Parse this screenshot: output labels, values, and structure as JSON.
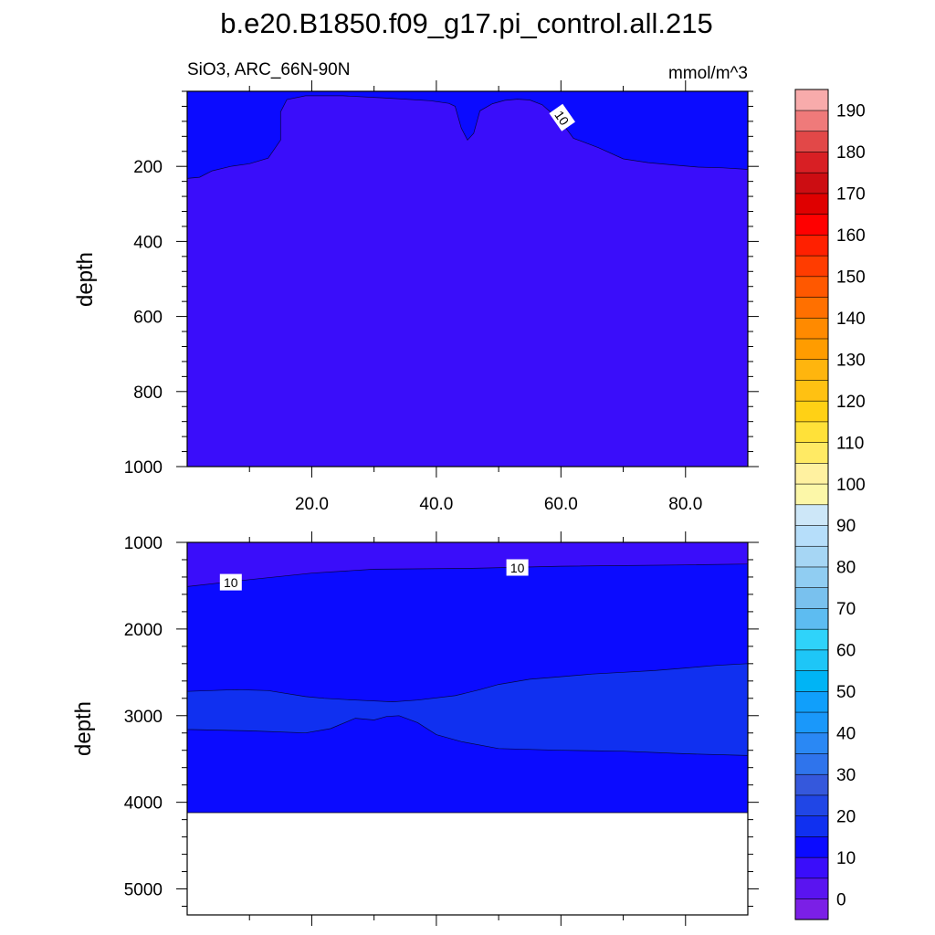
{
  "chart_data": {
    "type": "contour",
    "title": "b.e20.B1850.f09_g17.pi_control.all.215",
    "subtitle_left": "SiO3, ARC_66N-90N",
    "subtitle_right": "mmol/m^3",
    "xlim": [
      0,
      90
    ],
    "x_ticks": [
      20,
      40,
      60,
      80
    ],
    "x_tick_labels": [
      "20.0",
      "40.0",
      "60.0",
      "80.0"
    ],
    "colorbar": {
      "levels": [
        0,
        5,
        10,
        15,
        20,
        25,
        30,
        35,
        40,
        45,
        50,
        55,
        60,
        65,
        70,
        75,
        80,
        85,
        90,
        95,
        100,
        105,
        110,
        115,
        120,
        125,
        130,
        135,
        140,
        145,
        150,
        155,
        160,
        165,
        170,
        175,
        180,
        185,
        190
      ],
      "labels": [
        "0",
        "10",
        "20",
        "30",
        "40",
        "50",
        "60",
        "70",
        "80",
        "90",
        "100",
        "110",
        "120",
        "130",
        "140",
        "150",
        "160",
        "170",
        "180",
        "190"
      ],
      "colors": [
        "#7b1fe6",
        "#5a14f0",
        "#3a0dfa",
        "#0b0bff",
        "#1030f0",
        "#2046e6",
        "#3558dc",
        "#2f74ec",
        "#2a88f4",
        "#1a98fa",
        "#109ffb",
        "#00b4f5",
        "#1ec6f7",
        "#2fd3fa",
        "#5dbcf1",
        "#79c1ee",
        "#90cdf2",
        "#a6d6f4",
        "#b6defa",
        "#cde7f8",
        "#fcf7a8",
        "#fff1a0",
        "#ffea64",
        "#ffe139",
        "#ffd115",
        "#ffc112",
        "#ffb50e",
        "#ff9c00",
        "#ff8a00",
        "#ff7000",
        "#ff5800",
        "#ff3c00",
        "#ff2000",
        "#ff0000",
        "#df0000",
        "#cc0d12",
        "#d81f24",
        "#e24848",
        "#ef7a7a",
        "#f8abab"
      ]
    },
    "panels": [
      {
        "ylabel": "depth",
        "ylim": [
          0,
          1000
        ],
        "y_ticks": [
          200,
          400,
          600,
          800,
          1000
        ],
        "y_tick_labels": [
          "200",
          "400",
          "600",
          "800",
          "1000"
        ],
        "fill_color": "#3a0dfa",
        "regions": [
          {
            "color": "#0b0bff",
            "polygon": [
              [
                0,
                0
              ],
              [
                90,
                0
              ],
              [
                90,
                208
              ],
              [
                86,
                204
              ],
              [
                82,
                202
              ],
              [
                78,
                196
              ],
              [
                74,
                190
              ],
              [
                70,
                180
              ],
              [
                66,
                150
              ],
              [
                62,
                125
              ],
              [
                60,
                80
              ],
              [
                57,
                36
              ],
              [
                55,
                23
              ],
              [
                53,
                21
              ],
              [
                51,
                24
              ],
              [
                49,
                33
              ],
              [
                47,
                52
              ],
              [
                46,
                112
              ],
              [
                45,
                130
              ],
              [
                44,
                98
              ],
              [
                43,
                40
              ],
              [
                42,
                32
              ],
              [
                39,
                25
              ],
              [
                32,
                18
              ],
              [
                25,
                12
              ],
              [
                19,
                12
              ],
              [
                16,
                22
              ],
              [
                15,
                55
              ],
              [
                15,
                130
              ],
              [
                13,
                178
              ],
              [
                10,
                193
              ],
              [
                7,
                200
              ],
              [
                4,
                212
              ],
              [
                2,
                229
              ],
              [
                0,
                232
              ]
            ]
          }
        ],
        "contour_labels": [
          {
            "text": "10",
            "x": 60.2,
            "depth": 70,
            "angle": 55
          }
        ]
      },
      {
        "ylabel": "depth",
        "ylim": [
          1000,
          5300
        ],
        "y_ticks": [
          1000,
          2000,
          3000,
          4000,
          5000
        ],
        "y_tick_labels": [
          "1000",
          "2000",
          "3000",
          "4000",
          "5000"
        ],
        "fill_color": "#0b0bff",
        "bottom_depth": 4120,
        "regions": [
          {
            "color": "#3a0dfa",
            "polygon": [
              [
                0,
                1000
              ],
              [
                90,
                1000
              ],
              [
                90,
                1250
              ],
              [
                80,
                1260
              ],
              [
                60,
                1275
              ],
              [
                45,
                1300
              ],
              [
                30,
                1310
              ],
              [
                20,
                1355
              ],
              [
                10,
                1430
              ],
              [
                0,
                1510
              ]
            ]
          },
          {
            "color": "#1030f0",
            "polygon": [
              [
                0,
                2720
              ],
              [
                8,
                2700
              ],
              [
                13,
                2710
              ],
              [
                19,
                2780
              ],
              [
                22,
                2800
              ],
              [
                27,
                2820
              ],
              [
                33,
                2840
              ],
              [
                37,
                2820
              ],
              [
                43,
                2770
              ],
              [
                47,
                2700
              ],
              [
                50,
                2640
              ],
              [
                55,
                2580
              ],
              [
                60,
                2550
              ],
              [
                65,
                2520
              ],
              [
                70,
                2500
              ],
              [
                75,
                2480
              ],
              [
                80,
                2450
              ],
              [
                85,
                2420
              ],
              [
                90,
                2400
              ],
              [
                90,
                3460
              ],
              [
                80,
                3440
              ],
              [
                70,
                3410
              ],
              [
                60,
                3400
              ],
              [
                50,
                3380
              ],
              [
                44,
                3300
              ],
              [
                40,
                3220
              ],
              [
                37,
                3080
              ],
              [
                34,
                3000
              ],
              [
                32,
                3010
              ],
              [
                30,
                3050
              ],
              [
                27,
                3030
              ],
              [
                23,
                3150
              ],
              [
                19,
                3200
              ],
              [
                10,
                3175
              ],
              [
                0,
                3160
              ]
            ]
          }
        ],
        "contour_labels": [
          {
            "text": "10",
            "x": 7,
            "depth": 1460,
            "angle": 0
          },
          {
            "text": "10",
            "x": 53,
            "depth": 1290,
            "angle": 0
          }
        ]
      }
    ]
  }
}
